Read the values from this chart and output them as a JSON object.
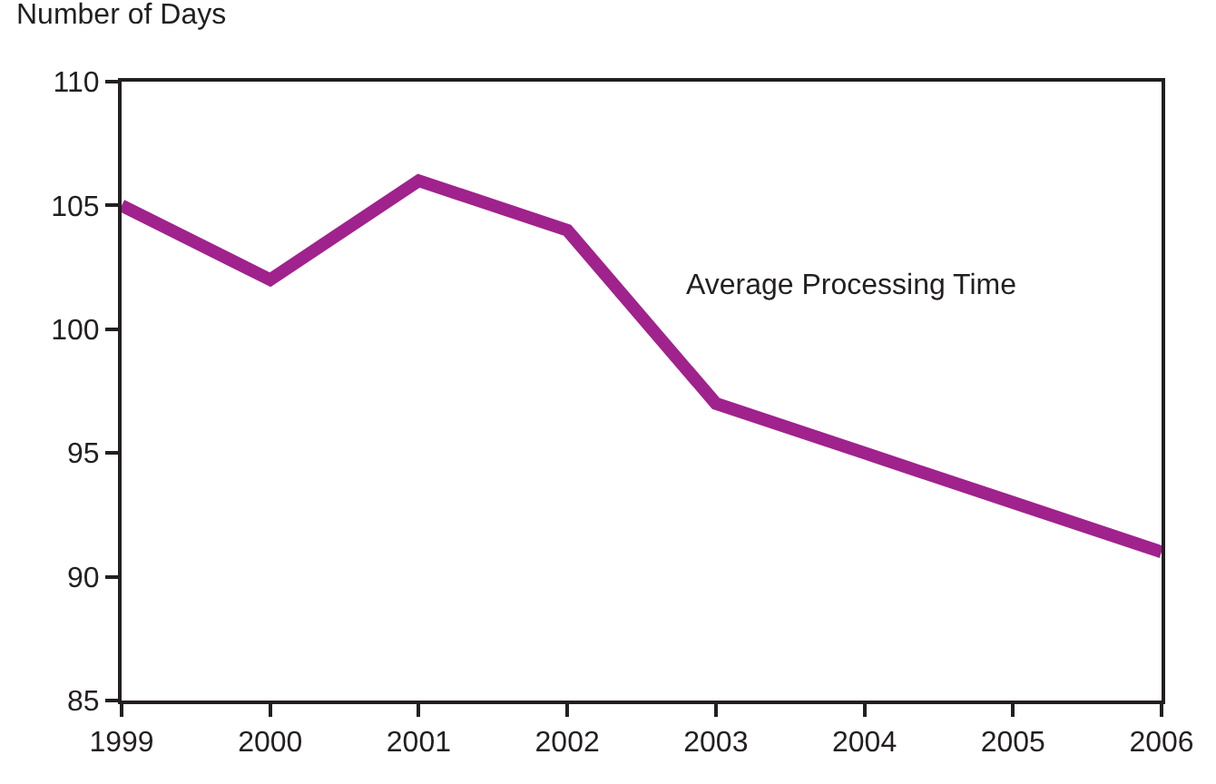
{
  "chart_data": {
    "type": "line",
    "ylabel": "Number of Days",
    "x": [
      1999,
      2000,
      2001,
      2002,
      2003,
      2004,
      2005,
      2006
    ],
    "series": [
      {
        "name": "Average Processing Time",
        "color": "#a0228c",
        "values": [
          105,
          102,
          106,
          104,
          97,
          95,
          93,
          91
        ]
      }
    ],
    "xlim": [
      1999,
      2006
    ],
    "xticks": [
      1999,
      2000,
      2001,
      2002,
      2003,
      2004,
      2005,
      2006
    ],
    "ylim": [
      85,
      110
    ],
    "yticks": [
      85,
      90,
      95,
      100,
      105,
      110
    ],
    "grid": false,
    "legend": false,
    "marker": "none",
    "line_style": "solid"
  }
}
